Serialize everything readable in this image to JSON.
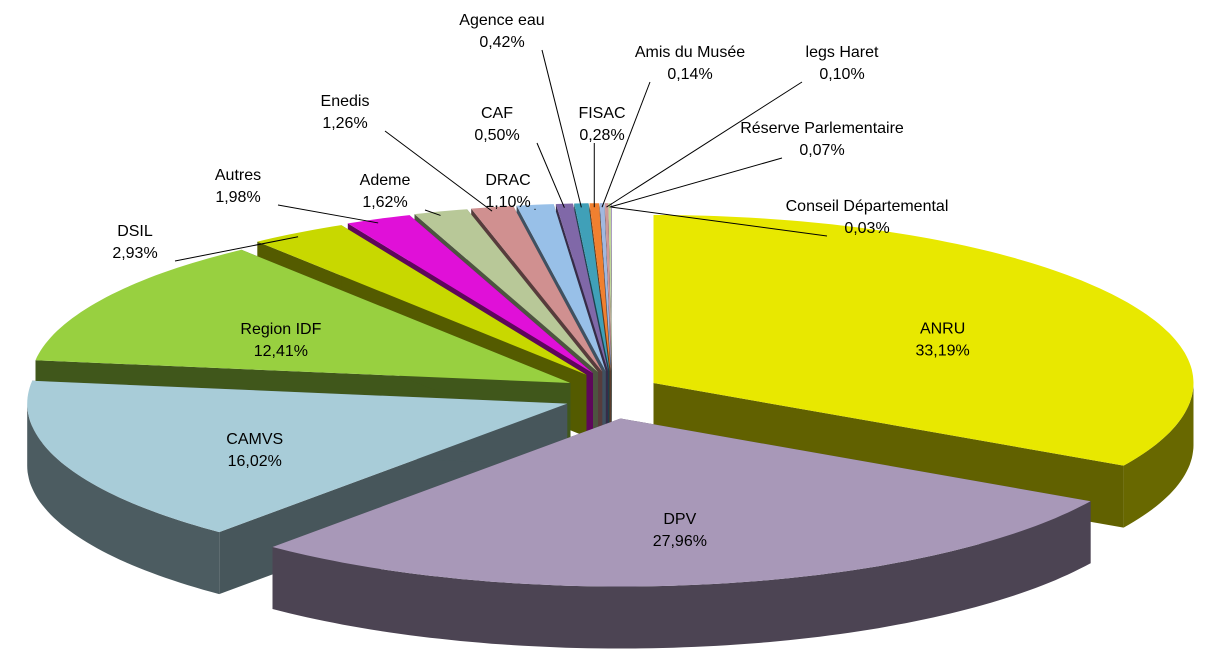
{
  "chart_data": {
    "type": "pie3d",
    "categories": [
      "ANRU",
      "DPV",
      "CAMVS",
      "Region IDF",
      "DSIL",
      "Autres",
      "Ademe",
      "Enedis",
      "DRAC",
      "CAF",
      "Agence eau",
      "FISAC",
      "Amis du Musée",
      "legs Haret",
      "Réserve Parlementaire",
      "Conseil Départemental"
    ],
    "values": [
      33.19,
      27.96,
      16.02,
      12.41,
      2.93,
      1.98,
      1.62,
      1.26,
      1.1,
      0.5,
      0.42,
      0.28,
      0.14,
      0.1,
      0.07,
      0.03
    ],
    "value_labels": [
      "33,19%",
      "27,96%",
      "16,02%",
      "12,41%",
      "2,93%",
      "1,98%",
      "1,62%",
      "1,26%",
      "1,10%",
      "0,50%",
      "0,42%",
      "0,28%",
      "0,14%",
      "0,10%",
      "0,07%",
      "0,03%"
    ],
    "colors": [
      "#e8e800",
      "#a898b8",
      "#a8ccd8",
      "#98d040",
      "#c8d800",
      "#e010d8",
      "#b8c898",
      "#d09090",
      "#98c0e8",
      "#8068a8",
      "#40a0b8",
      "#f08030",
      "#a0b8e0",
      "#d09898",
      "#c0d898",
      "#a898c0"
    ]
  }
}
